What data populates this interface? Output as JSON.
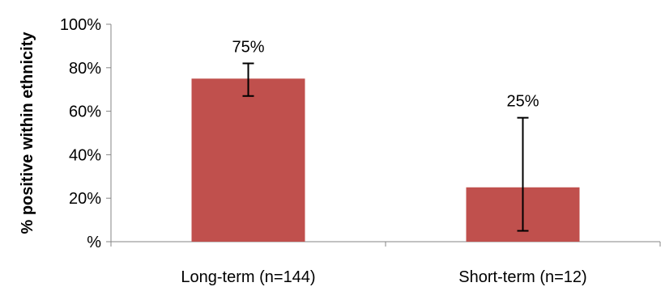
{
  "chart_data": {
    "type": "bar",
    "title": "",
    "xlabel": "",
    "ylabel": "% positive within ethnicity",
    "ylim": [
      0,
      100
    ],
    "yticks": [
      {
        "value": 0,
        "label": "%"
      },
      {
        "value": 20,
        "label": "20%"
      },
      {
        "value": 40,
        "label": "40%"
      },
      {
        "value": 60,
        "label": "60%"
      },
      {
        "value": 80,
        "label": "80%"
      },
      {
        "value": 100,
        "label": "100%"
      }
    ],
    "categories": [
      "Long-term (n=144)",
      "Short-term (n=12)"
    ],
    "values": [
      75,
      25
    ],
    "data_labels": [
      "75%",
      "25%"
    ],
    "error_bars": [
      {
        "low": 67,
        "high": 82
      },
      {
        "low": 5,
        "high": 57
      }
    ],
    "bar_color": "#C0504D",
    "grid": false,
    "legend": "none"
  }
}
